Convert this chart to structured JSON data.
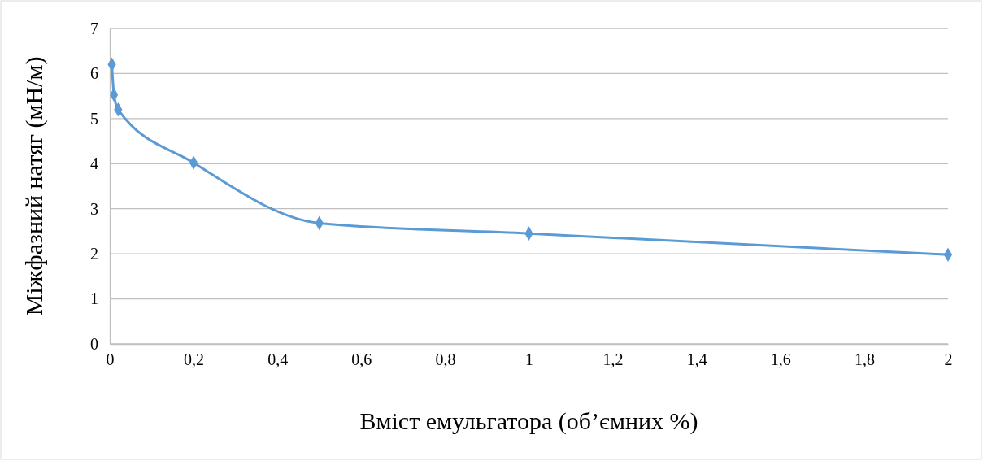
{
  "chart_data": {
    "type": "line",
    "xlabel": "Вміст емульгатора (об’ємних %)",
    "ylabel": "Міжфазний натяг (мН/м)",
    "x": [
      0.005,
      0.01,
      0.02,
      0.2,
      0.5,
      1,
      2
    ],
    "series": [
      {
        "color": "#5b9bd5",
        "values": [
          6.2,
          5.53,
          5.2,
          4.02,
          2.68,
          2.45,
          1.98
        ]
      }
    ],
    "xlim": [
      0,
      2
    ],
    "xticks": [
      {
        "value": 0,
        "label": "0"
      },
      {
        "value": 0.2,
        "label": "0,2"
      },
      {
        "value": 0.4,
        "label": "0,4"
      },
      {
        "value": 0.6,
        "label": "0,6"
      },
      {
        "value": 0.8,
        "label": "0,8"
      },
      {
        "value": 1,
        "label": "1"
      },
      {
        "value": 1.2,
        "label": "1,2"
      },
      {
        "value": 1.4,
        "label": "1,4"
      },
      {
        "value": 1.6,
        "label": "1,6"
      },
      {
        "value": 1.8,
        "label": "1,8"
      },
      {
        "value": 2,
        "label": "2"
      }
    ],
    "ylim": [
      0,
      7
    ],
    "yticks": [
      0,
      1,
      2,
      3,
      4,
      5,
      6,
      7
    ],
    "grid": "y",
    "marker": "diamond",
    "line_style": "solid"
  }
}
